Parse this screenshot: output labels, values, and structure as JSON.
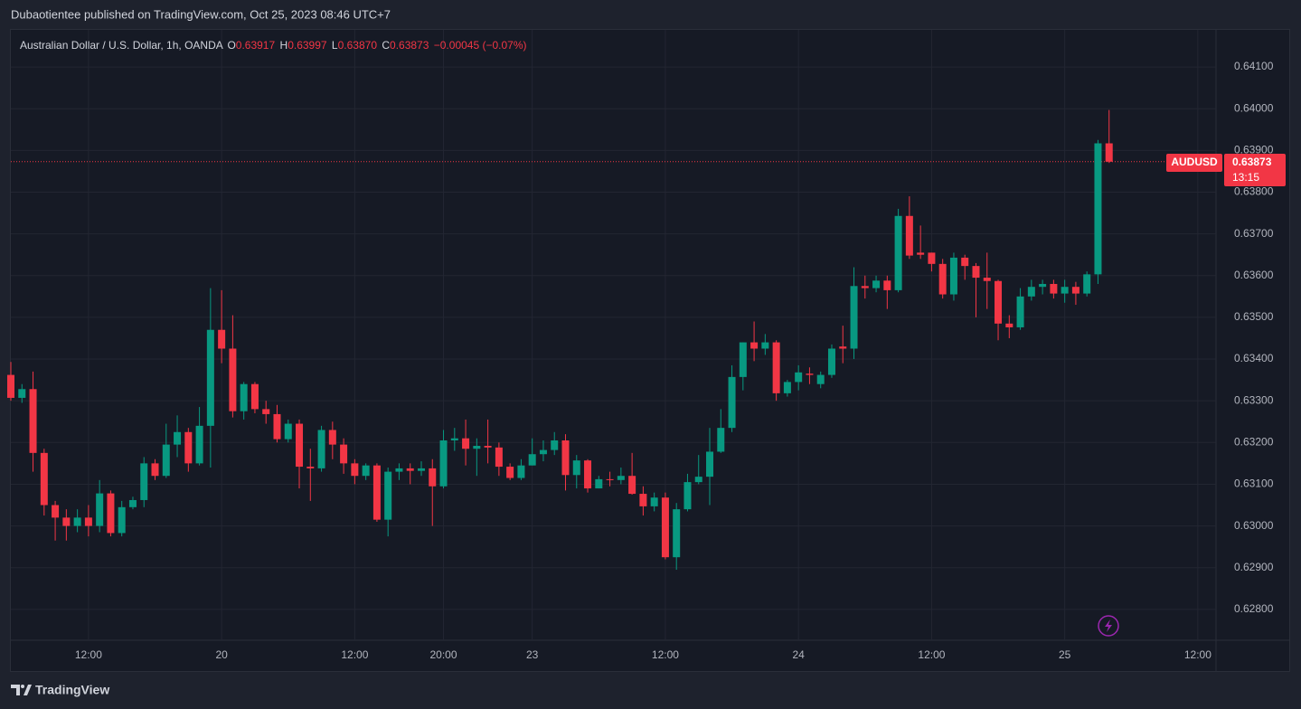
{
  "publisher_line": "Dubaotientee published on TradingView.com, Oct 25, 2023 08:46 UTC+7",
  "header": {
    "symbol": "Australian Dollar / U.S. Dollar, 1h, OANDA",
    "open_label": "O",
    "open": "0.63917",
    "high_label": "H",
    "high": "0.63997",
    "low_label": "L",
    "low": "0.63870",
    "close_label": "C",
    "close": "0.63873",
    "change": "−0.00045 (−0.07%)"
  },
  "price_tag": {
    "symbol": "AUDUSD",
    "price": {
      "value": 0.63873,
      "label": "0.63873"
    },
    "countdown": "13:15"
  },
  "footer": {
    "brand": "TradingView"
  },
  "chart_data": {
    "type": "candlestick",
    "up_color": "#089981",
    "down_color": "#f23645",
    "grid": true,
    "categories": [
      null,
      null,
      null,
      null,
      null,
      null,
      null,
      "12:00",
      null,
      null,
      null,
      null,
      null,
      null,
      null,
      null,
      null,
      null,
      null,
      "20",
      null,
      null,
      null,
      null,
      null,
      null,
      null,
      null,
      null,
      null,
      null,
      "12:00",
      null,
      null,
      null,
      null,
      null,
      null,
      null,
      "20:00",
      null,
      null,
      null,
      null,
      null,
      null,
      null,
      "23",
      null,
      null,
      null,
      null,
      null,
      null,
      null,
      null,
      null,
      null,
      null,
      "12:00",
      null,
      null,
      null,
      null,
      null,
      null,
      null,
      null,
      null,
      null,
      null,
      "24",
      null,
      null,
      null,
      null,
      null,
      null,
      null,
      null,
      null,
      null,
      null,
      "12:00",
      null,
      null,
      null,
      null,
      null,
      null,
      null,
      null,
      null,
      null,
      null,
      "25",
      null,
      null,
      null,
      null,
      null,
      null,
      null,
      null,
      null,
      null,
      null,
      "12:00"
    ],
    "open": [
      0.63362,
      0.63307,
      0.63328,
      0.63175,
      0.6305,
      0.6302,
      0.63,
      0.6302,
      0.63,
      0.63078,
      0.62983,
      0.63045,
      0.63062,
      0.6315,
      0.6312,
      0.63195,
      0.63225,
      0.6315,
      0.6324,
      0.6347,
      0.63425,
      0.63275,
      0.6334,
      0.6328,
      0.63268,
      0.63208,
      0.63245,
      0.63142,
      0.63138,
      0.6323,
      0.63195,
      0.6315,
      0.6312,
      0.63145,
      0.63015,
      0.6313,
      0.63138,
      0.63132,
      0.63138,
      0.63095,
      0.63205,
      0.6321,
      0.63185,
      0.63192,
      0.63188,
      0.63142,
      0.63115,
      0.63145,
      0.63172,
      0.63182,
      0.63205,
      0.63122,
      0.63157,
      0.6309,
      0.63112,
      0.6311,
      0.6312,
      0.63077,
      0.63047,
      0.63068,
      0.62925,
      0.6304,
      0.63105,
      0.63118,
      0.63178,
      0.63235,
      0.63357,
      0.6344,
      0.63425,
      0.6344,
      0.63318,
      0.63345,
      0.63365,
      0.6334,
      0.63362,
      0.6343,
      0.63425,
      0.63575,
      0.6357,
      0.63588,
      0.63565,
      0.63743,
      0.63655,
      0.63655,
      0.63628,
      0.63555,
      0.63643,
      0.63623,
      0.63595,
      0.63587,
      0.63485,
      0.63476,
      0.6355,
      0.63573,
      0.6358,
      0.63557,
      0.63573,
      0.63557,
      0.63603,
      0.63917,
      null,
      null,
      null,
      null,
      null,
      null,
      null,
      null
    ],
    "high": [
      0.63393,
      0.6334,
      0.6337,
      0.63185,
      0.6306,
      0.6304,
      0.6304,
      0.6305,
      0.6311,
      0.63085,
      0.6306,
      0.6307,
      0.63165,
      0.6316,
      0.63245,
      0.63265,
      0.63235,
      0.63285,
      0.6357,
      0.63565,
      0.63505,
      0.63345,
      0.63345,
      0.633,
      0.6329,
      0.63255,
      0.63255,
      0.63185,
      0.6324,
      0.6325,
      0.6321,
      0.6316,
      0.6315,
      0.6315,
      0.6314,
      0.6315,
      0.6315,
      0.63155,
      0.6316,
      0.6323,
      0.63235,
      0.63255,
      0.6321,
      0.63255,
      0.632,
      0.6315,
      0.6316,
      0.6321,
      0.63205,
      0.63225,
      0.6322,
      0.6317,
      0.6316,
      0.6312,
      0.6313,
      0.6314,
      0.63175,
      0.63095,
      0.6308,
      0.6308,
      0.63055,
      0.63125,
      0.6317,
      0.63235,
      0.6328,
      0.63385,
      0.6344,
      0.6349,
      0.6346,
      0.63445,
      0.6335,
      0.63385,
      0.6338,
      0.6337,
      0.63435,
      0.6348,
      0.6362,
      0.636,
      0.636,
      0.636,
      0.6376,
      0.6379,
      0.6372,
      0.63655,
      0.6364,
      0.63655,
      0.6365,
      0.6363,
      0.63655,
      0.6359,
      0.63505,
      0.6357,
      0.6359,
      0.6359,
      0.6359,
      0.6359,
      0.63585,
      0.6361,
      0.63925,
      0.63997,
      null,
      null,
      null,
      null,
      null,
      null,
      null,
      null
    ],
    "low": [
      0.633,
      0.63295,
      0.6313,
      0.63025,
      0.62965,
      0.62965,
      0.62985,
      0.62975,
      0.62985,
      0.62975,
      0.62975,
      0.6304,
      0.63045,
      0.6311,
      0.63115,
      0.63165,
      0.6313,
      0.63145,
      0.6314,
      0.6339,
      0.6326,
      0.63255,
      0.6327,
      0.63245,
      0.632,
      0.632,
      0.6309,
      0.6306,
      0.6313,
      0.6316,
      0.63125,
      0.631,
      0.6311,
      0.6301,
      0.62975,
      0.6311,
      0.631,
      0.6312,
      0.63,
      0.6309,
      0.6318,
      0.63145,
      0.6312,
      0.6315,
      0.6312,
      0.6311,
      0.6311,
      0.63145,
      0.63155,
      0.6317,
      0.63085,
      0.6309,
      0.6308,
      0.6309,
      0.63095,
      0.631,
      0.63075,
      0.63025,
      0.63035,
      0.6292,
      0.62895,
      0.63035,
      0.631,
      0.6305,
      0.63175,
      0.63225,
      0.63325,
      0.63395,
      0.6341,
      0.633,
      0.6331,
      0.63325,
      0.6334,
      0.6333,
      0.63355,
      0.6339,
      0.634,
      0.63545,
      0.6356,
      0.6352,
      0.6356,
      0.6364,
      0.6364,
      0.6361,
      0.63545,
      0.6354,
      0.6359,
      0.635,
      0.6352,
      0.63445,
      0.6345,
      0.6347,
      0.6354,
      0.63555,
      0.63545,
      0.63535,
      0.6353,
      0.6355,
      0.6358,
      0.6387,
      null,
      null,
      null,
      null,
      null,
      null,
      null,
      null
    ],
    "close": [
      0.63307,
      0.63328,
      0.63175,
      0.6305,
      0.6302,
      0.63,
      0.6302,
      0.63,
      0.63078,
      0.62983,
      0.63045,
      0.63062,
      0.6315,
      0.6312,
      0.63195,
      0.63225,
      0.6315,
      0.6324,
      0.6347,
      0.63425,
      0.63275,
      0.6334,
      0.6328,
      0.63268,
      0.63208,
      0.63245,
      0.63142,
      0.63138,
      0.6323,
      0.63195,
      0.6315,
      0.6312,
      0.63145,
      0.63015,
      0.6313,
      0.63138,
      0.63132,
      0.63138,
      0.63095,
      0.63205,
      0.6321,
      0.63185,
      0.63192,
      0.63188,
      0.63142,
      0.63115,
      0.63145,
      0.63172,
      0.63182,
      0.63205,
      0.63122,
      0.63157,
      0.6309,
      0.63112,
      0.6311,
      0.6312,
      0.63077,
      0.63047,
      0.63068,
      0.62925,
      0.6304,
      0.63105,
      0.63118,
      0.63178,
      0.63235,
      0.63357,
      0.6344,
      0.63425,
      0.6344,
      0.63318,
      0.63345,
      0.63368,
      0.63362,
      0.63362,
      0.63425,
      0.63425,
      0.63575,
      0.6357,
      0.63588,
      0.63565,
      0.63743,
      0.63648,
      0.6365,
      0.63628,
      0.63555,
      0.63643,
      0.63623,
      0.63595,
      0.63587,
      0.63485,
      0.63476,
      0.6355,
      0.63573,
      0.6358,
      0.63557,
      0.63573,
      0.63557,
      0.63603,
      0.63917,
      0.63873,
      null,
      null,
      null,
      null,
      null,
      null,
      null,
      null
    ],
    "ylim": [
      0.62726,
      0.64189
    ],
    "yticks": [
      {
        "value": 0.628,
        "label": "0.62800"
      },
      {
        "value": 0.629,
        "label": "0.62900"
      },
      {
        "value": 0.63,
        "label": "0.63000"
      },
      {
        "value": 0.631,
        "label": "0.63100"
      },
      {
        "value": 0.632,
        "label": "0.63200"
      },
      {
        "value": 0.633,
        "label": "0.63300"
      },
      {
        "value": 0.634,
        "label": "0.63400"
      },
      {
        "value": 0.635,
        "label": "0.63500"
      },
      {
        "value": 0.636,
        "label": "0.63600"
      },
      {
        "value": 0.637,
        "label": "0.63700"
      },
      {
        "value": 0.638,
        "label": "0.63800"
      },
      {
        "value": 0.639,
        "label": "0.63900"
      },
      {
        "value": 0.64,
        "label": "0.64000"
      },
      {
        "value": 0.641,
        "label": "0.64100"
      }
    ]
  }
}
